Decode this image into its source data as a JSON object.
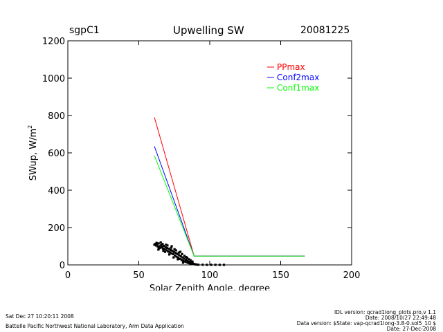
{
  "header": {
    "site": "sgpC1",
    "title": "Upwelling SW",
    "date": "20081225"
  },
  "footer": {
    "left": [
      "Sat Dec 27 10:20:11 2008",
      "Battelle Pacific Northwest National Laboratory, Arm Data Application"
    ],
    "right": [
      "IDL version: qcrad1long_plots.pro,v 1.1",
      "Date: 2008/10/27 22:49:48",
      "Data version: $State: vap-qcrad1long-3.8-0.sol5_10 $",
      "Date: 27-Dec-2008"
    ]
  },
  "chart_data": {
    "type": "line",
    "title": "Upwelling SW",
    "xlabel": "Solar Zenith Angle, degree",
    "ylabel": "SWup, W/m",
    "ylabel_superscript": "2",
    "xlim": [
      0,
      200
    ],
    "ylim": [
      0,
      1200
    ],
    "xticks": [
      0,
      50,
      100,
      150,
      200
    ],
    "yticks": [
      0,
      200,
      400,
      600,
      800,
      1000,
      1200
    ],
    "grid": false,
    "legend_position": "top-right",
    "series": [
      {
        "name": "PPmax",
        "color": "#ff0000",
        "x": [
          61,
          89,
          167
        ],
        "y": [
          790,
          47,
          47
        ]
      },
      {
        "name": "Conf2max",
        "color": "#0000ff",
        "x": [
          61,
          89,
          167
        ],
        "y": [
          635,
          47,
          47
        ]
      },
      {
        "name": "Conf1max",
        "color": "#00ff00",
        "x": [
          61,
          89,
          167
        ],
        "y": [
          585,
          47,
          47
        ]
      }
    ],
    "scatter": {
      "color": "#000000",
      "points": [
        [
          61,
          108
        ],
        [
          61.6,
          112
        ],
        [
          62.2,
          104
        ],
        [
          62.8,
          110
        ],
        [
          63.4,
          98
        ],
        [
          64,
          115
        ],
        [
          64.6,
          100
        ],
        [
          65.2,
          92
        ],
        [
          65.8,
          106
        ],
        [
          66.4,
          96
        ],
        [
          67,
          88
        ],
        [
          67.6,
          102
        ],
        [
          68.2,
          84
        ],
        [
          68.8,
          94
        ],
        [
          69.4,
          78
        ],
        [
          70,
          90
        ],
        [
          70.6,
          72
        ],
        [
          71.2,
          86
        ],
        [
          71.8,
          68
        ],
        [
          72.4,
          80
        ],
        [
          73,
          62
        ],
        [
          73.6,
          76
        ],
        [
          74.2,
          58
        ],
        [
          74.8,
          70
        ],
        [
          75.4,
          50
        ],
        [
          76,
          64
        ],
        [
          76.6,
          44
        ],
        [
          77.2,
          58
        ],
        [
          77.8,
          38
        ],
        [
          78.4,
          52
        ],
        [
          79,
          32
        ],
        [
          79.6,
          46
        ],
        [
          80.2,
          26
        ],
        [
          80.8,
          40
        ],
        [
          81.4,
          22
        ],
        [
          82,
          34
        ],
        [
          82.6,
          18
        ],
        [
          83.2,
          28
        ],
        [
          83.8,
          14
        ],
        [
          84.4,
          22
        ],
        [
          85,
          10
        ],
        [
          85.6,
          16
        ],
        [
          86.2,
          8
        ],
        [
          86.8,
          12
        ],
        [
          87.4,
          6
        ],
        [
          88,
          8
        ],
        [
          88.6,
          5
        ],
        [
          89.2,
          4
        ],
        [
          89.8,
          3
        ],
        [
          90.5,
          2
        ],
        [
          62.5,
          118
        ],
        [
          64.2,
          88
        ],
        [
          66.8,
          112
        ],
        [
          68.5,
          70
        ],
        [
          70.2,
          104
        ],
        [
          72.8,
          92
        ],
        [
          74.5,
          40
        ],
        [
          76.2,
          78
        ],
        [
          78.2,
          66
        ],
        [
          80.5,
          58
        ],
        [
          82.2,
          48
        ],
        [
          84.2,
          36
        ],
        [
          86.5,
          24
        ],
        [
          63.8,
          82
        ],
        [
          65.5,
          120
        ],
        [
          67.3,
          76
        ],
        [
          69.2,
          108
        ],
        [
          71.5,
          56
        ],
        [
          73.2,
          100
        ],
        [
          75.2,
          84
        ],
        [
          77.5,
          30
        ],
        [
          79.3,
          70
        ],
        [
          81.2,
          12
        ],
        [
          83.5,
          42
        ],
        [
          85.5,
          30
        ],
        [
          87.8,
          18
        ],
        [
          92,
          1
        ],
        [
          95,
          1
        ],
        [
          98,
          0.5
        ],
        [
          101,
          0.5
        ],
        [
          104,
          0.5
        ],
        [
          107,
          0.3
        ],
        [
          110,
          0.3
        ]
      ]
    }
  }
}
